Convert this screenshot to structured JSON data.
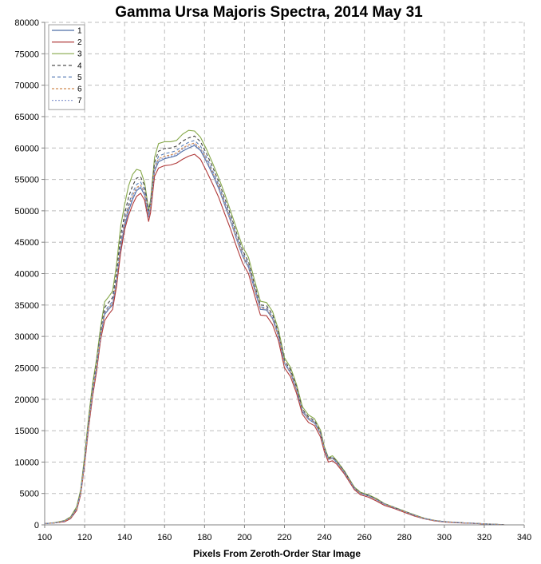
{
  "chart_data": {
    "type": "line",
    "title": "Gamma Ursa Majoris Spectra, 2014 May 31",
    "xlabel": "Pixels From Zeroth-Order Star Image",
    "ylabel": "",
    "xlim": [
      100,
      340
    ],
    "ylim": [
      0,
      80000
    ],
    "x_ticks": [
      100,
      120,
      140,
      160,
      180,
      200,
      220,
      240,
      260,
      280,
      300,
      320,
      340
    ],
    "y_ticks": [
      0,
      5000,
      10000,
      15000,
      20000,
      25000,
      30000,
      35000,
      40000,
      45000,
      50000,
      55000,
      60000,
      65000,
      70000,
      75000,
      80000
    ],
    "grid": "dashed, both axes",
    "legend_position": "top-left",
    "x": [
      100,
      105,
      110,
      113,
      116,
      118,
      120,
      122,
      124,
      126,
      128,
      130,
      132,
      134,
      136,
      138,
      140,
      142,
      144,
      146,
      148,
      150,
      152,
      153,
      155,
      157,
      160,
      163,
      166,
      169,
      172,
      175,
      178,
      181,
      184,
      187,
      190,
      193,
      196,
      199,
      202,
      205,
      208,
      211,
      214,
      217,
      220,
      223,
      226,
      229,
      232,
      235,
      238,
      240,
      242,
      244,
      246,
      250,
      255,
      258,
      262,
      266,
      270,
      275,
      280,
      285,
      290,
      295,
      300,
      305,
      310,
      315,
      320,
      325,
      330
    ],
    "series": [
      {
        "name": "1",
        "color": "#4f6fa8",
        "dash": "",
        "values": [
          200,
          300,
          600,
          1100,
          2500,
          5000,
          10000,
          16000,
          21000,
          25000,
          30000,
          33500,
          34300,
          35000,
          38500,
          44000,
          47500,
          50000,
          51800,
          53200,
          53700,
          52500,
          49000,
          50500,
          56300,
          57800,
          58300,
          58500,
          58800,
          59500,
          60000,
          60400,
          59600,
          57800,
          55800,
          53600,
          51000,
          48400,
          45500,
          42800,
          41000,
          37500,
          34300,
          34200,
          32800,
          30000,
          25700,
          24200,
          21500,
          18000,
          16800,
          16200,
          14500,
          12000,
          10400,
          10600,
          10000,
          8300,
          5800,
          5000,
          4600,
          4000,
          3300,
          2700,
          2100,
          1500,
          1000,
          700,
          500,
          400,
          300,
          250,
          150,
          80,
          30
        ]
      },
      {
        "name": "2",
        "color": "#b03a3a",
        "dash": "",
        "values": [
          200,
          300,
          500,
          1000,
          2300,
          4800,
          9600,
          15500,
          20500,
          24500,
          29500,
          32500,
          33500,
          34300,
          38000,
          43300,
          47000,
          49300,
          51000,
          52300,
          52800,
          51700,
          48300,
          49700,
          55500,
          56800,
          57200,
          57300,
          57600,
          58200,
          58700,
          59000,
          58200,
          56300,
          54300,
          52200,
          49600,
          47100,
          44300,
          41700,
          40000,
          36600,
          33400,
          33300,
          31900,
          29300,
          25000,
          23600,
          21000,
          17600,
          16300,
          15800,
          14000,
          11600,
          10000,
          10200,
          9700,
          8100,
          5600,
          4800,
          4400,
          3800,
          3100,
          2600,
          2000,
          1400,
          950,
          650,
          450,
          350,
          280,
          230,
          130,
          70,
          20
        ]
      },
      {
        "name": "3",
        "color": "#86a84a",
        "dash": "",
        "values": [
          200,
          350,
          700,
          1300,
          2900,
          5600,
          11000,
          17200,
          22500,
          26500,
          31500,
          35500,
          36300,
          37200,
          41500,
          47500,
          51000,
          54000,
          55800,
          56600,
          56400,
          54500,
          50200,
          51700,
          58500,
          60700,
          61000,
          61000,
          61200,
          62200,
          62800,
          62700,
          61700,
          59800,
          57600,
          55300,
          52800,
          50000,
          47200,
          44300,
          42600,
          39000,
          35600,
          35400,
          34000,
          31100,
          26600,
          25100,
          22400,
          18800,
          17500,
          16900,
          15100,
          12400,
          10700,
          11000,
          10300,
          8600,
          6000,
          5200,
          4800,
          4200,
          3400,
          2800,
          2200,
          1600,
          1050,
          720,
          520,
          420,
          320,
          260,
          160,
          90,
          40
        ]
      },
      {
        "name": "4",
        "color": "#404040",
        "dash": "4,3",
        "values": [
          200,
          320,
          650,
          1200,
          2700,
          5300,
          10500,
          16600,
          21800,
          25800,
          30800,
          34600,
          35400,
          36200,
          40300,
          46000,
          49500,
          52200,
          54000,
          55200,
          55400,
          54000,
          50000,
          51300,
          57700,
          59500,
          59900,
          60000,
          60300,
          61100,
          61600,
          61900,
          61000,
          59100,
          57000,
          54700,
          52100,
          49400,
          46500,
          43700,
          41900,
          38300,
          35000,
          34900,
          33500,
          30600,
          26200,
          24700,
          22000,
          18400,
          17200,
          16600,
          14800,
          12200,
          10600,
          10800,
          10200,
          8500,
          5900,
          5100,
          4700,
          4100,
          3350,
          2750,
          2150,
          1550,
          1020,
          710,
          510,
          410,
          310,
          255,
          155,
          85,
          35
        ]
      },
      {
        "name": "5",
        "color": "#5a7fb8",
        "dash": "4,3",
        "values": [
          200,
          310,
          620,
          1150,
          2600,
          5150,
          10200,
          16300,
          21400,
          25400,
          30400,
          34000,
          34800,
          35600,
          39400,
          45000,
          48500,
          51100,
          52900,
          54200,
          54600,
          53300,
          49500,
          50900,
          57000,
          58700,
          59100,
          59300,
          59600,
          60400,
          60900,
          61200,
          60300,
          58500,
          56400,
          54200,
          51600,
          48900,
          46000,
          43300,
          41500,
          37900,
          34700,
          34600,
          33100,
          30300,
          25900,
          24400,
          21700,
          18200,
          17000,
          16400,
          14600,
          12100,
          10500,
          10700,
          10100,
          8400,
          5850,
          5050,
          4650,
          4050,
          3320,
          2720,
          2120,
          1520,
          1010,
          705,
          505,
          405,
          305,
          252,
          152,
          82,
          32
        ]
      },
      {
        "name": "6",
        "color": "#d08a50",
        "dash": "3,2",
        "values": [
          200,
          305,
          610,
          1120,
          2550,
          5080,
          10100,
          16100,
          21200,
          25200,
          30100,
          33800,
          34500,
          35300,
          39000,
          44600,
          48100,
          50700,
          52400,
          53700,
          54100,
          52900,
          49200,
          50700,
          56700,
          58300,
          58700,
          58900,
          59200,
          60000,
          60500,
          60800,
          59900,
          58100,
          56100,
          53900,
          51300,
          48600,
          45700,
          43000,
          41200,
          37700,
          34500,
          34400,
          32900,
          30100,
          25800,
          24300,
          21600,
          18100,
          16900,
          16300,
          14550,
          12050,
          10450,
          10650,
          10050,
          8350,
          5820,
          5020,
          4620,
          4020,
          3310,
          2710,
          2110,
          1510,
          1005,
          702,
          502,
          402,
          302,
          251,
          151,
          81,
          31
        ]
      },
      {
        "name": "7",
        "color": "#8a9ad0",
        "dash": "2,2",
        "values": [
          200,
          302,
          605,
          1110,
          2520,
          5040,
          10050,
          16050,
          21100,
          25100,
          30050,
          33700,
          34400,
          35200,
          38800,
          44400,
          47900,
          50400,
          52200,
          53500,
          53900,
          52700,
          49100,
          50600,
          56500,
          58100,
          58500,
          58700,
          59000,
          59800,
          60300,
          60600,
          59800,
          58000,
          56000,
          53800,
          51200,
          48500,
          45600,
          42900,
          41100,
          37600,
          34400,
          34300,
          32850,
          30050,
          25750,
          24250,
          21550,
          18050,
          16850,
          16250,
          14520,
          12020,
          10420,
          10620,
          10020,
          8320,
          5810,
          5010,
          4610,
          4010,
          3305,
          2705,
          2105,
          1505,
          1002,
          701,
          501,
          401,
          301,
          250,
          150,
          80,
          30
        ]
      }
    ]
  }
}
